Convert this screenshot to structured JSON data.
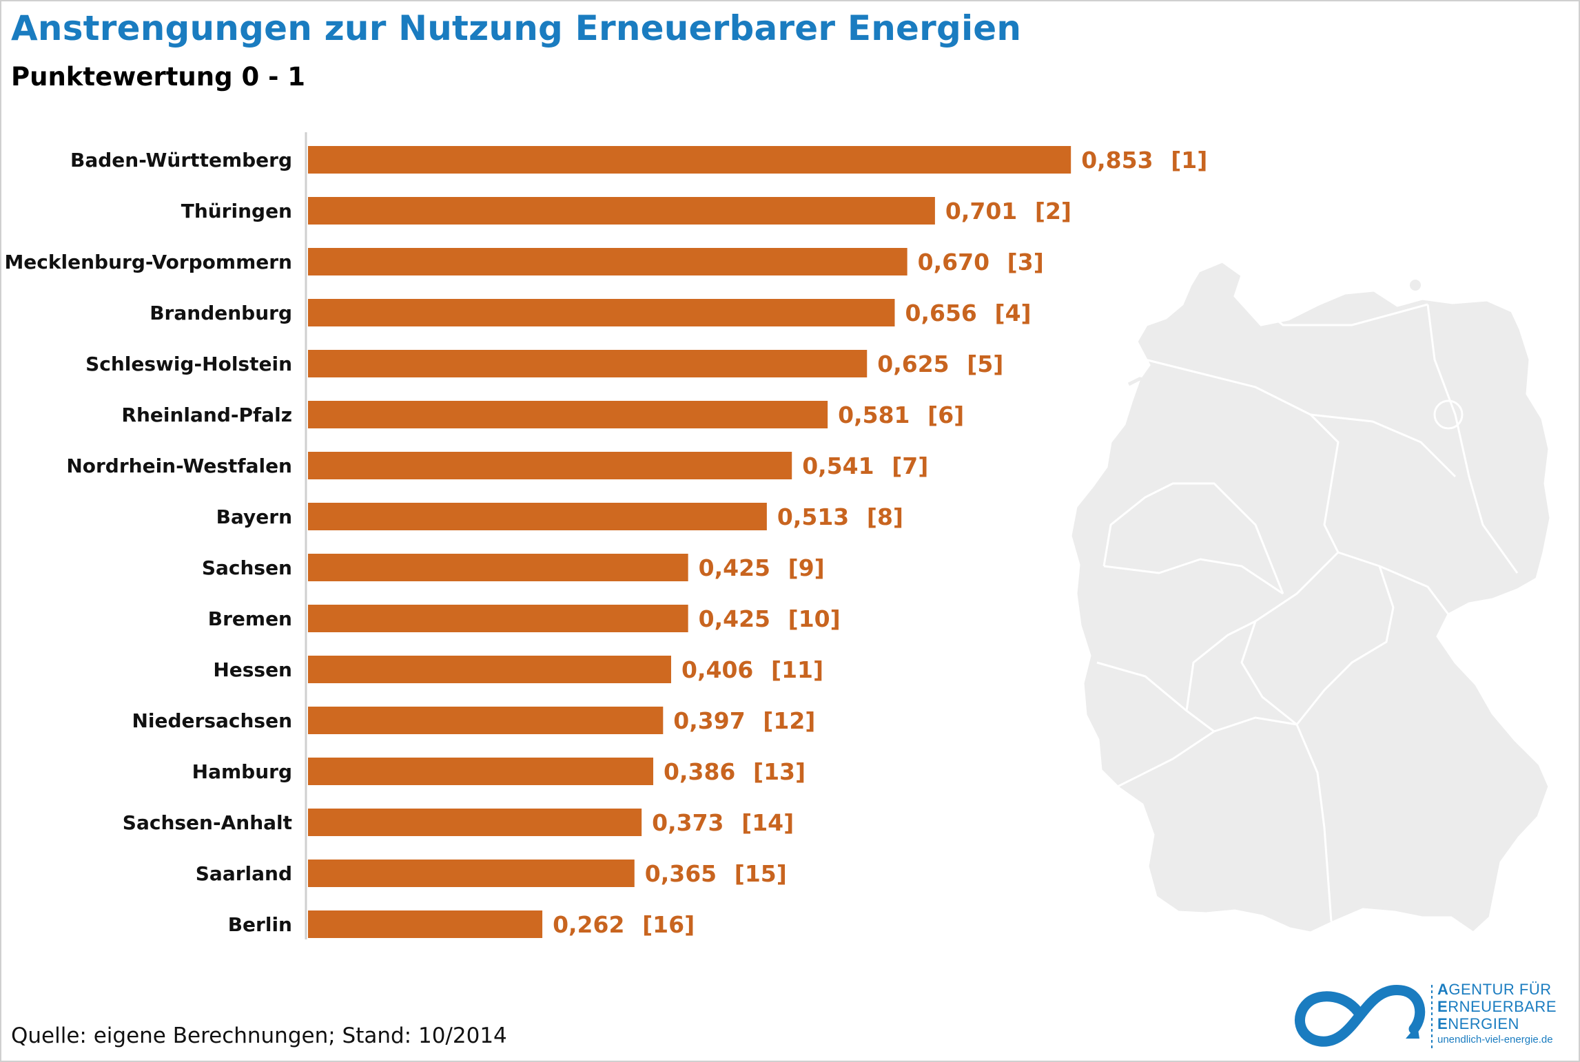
{
  "title": "Anstrengungen zur Nutzung Erneuerbarer Energien",
  "subtitle": "Punktewertung 0 - 1",
  "source": "Quelle: eigene Berechnungen; Stand: 10/2014",
  "logo": {
    "line1_initial": "A",
    "line1_rest": "GENTUR FÜR",
    "line2_initial": "E",
    "line2_rest": "RNEUERBARE",
    "line3_initial": "E",
    "line3_rest": "NERGIEN",
    "url": "unendlich-viel-energie.de"
  },
  "colors": {
    "bar": "#cf6920",
    "value_text": "#c8641f",
    "title": "#1a7cc0",
    "map": "#ececec",
    "map_border": "#ffffff"
  },
  "chart_data": {
    "type": "bar",
    "orientation": "horizontal",
    "title": "Anstrengungen zur Nutzung Erneuerbarer Energien",
    "subtitle": "Punktewertung 0 - 1",
    "xlabel": "",
    "ylabel": "",
    "xlim": [
      0,
      1
    ],
    "grid": false,
    "categories": [
      "Baden-Württemberg",
      "Thüringen",
      "Mecklenburg-Vorpommern",
      "Brandenburg",
      "Schleswig-Holstein",
      "Rheinland-Pfalz",
      "Nordrhein-Westfalen",
      "Bayern",
      "Sachsen",
      "Bremen",
      "Hessen",
      "Niedersachsen",
      "Hamburg",
      "Sachsen-Anhalt",
      "Saarland",
      "Berlin"
    ],
    "values": [
      0.853,
      0.701,
      0.67,
      0.656,
      0.625,
      0.581,
      0.541,
      0.513,
      0.425,
      0.425,
      0.406,
      0.397,
      0.386,
      0.373,
      0.365,
      0.262
    ],
    "value_labels": [
      "0,853",
      "0,701",
      "0,670",
      "0,656",
      "0,625",
      "0,581",
      "0,541",
      "0,513",
      "0,425",
      "0,425",
      "0,406",
      "0,397",
      "0,386",
      "0,373",
      "0,365",
      "0,262"
    ],
    "rank_labels": [
      "[1]",
      "[2]",
      "[3]",
      "[4]",
      "[5]",
      "[6]",
      "[7]",
      "[8]",
      "[9]",
      "[10]",
      "[11]",
      "[12]",
      "[13]",
      "[14]",
      "[15]",
      "[16]"
    ]
  }
}
